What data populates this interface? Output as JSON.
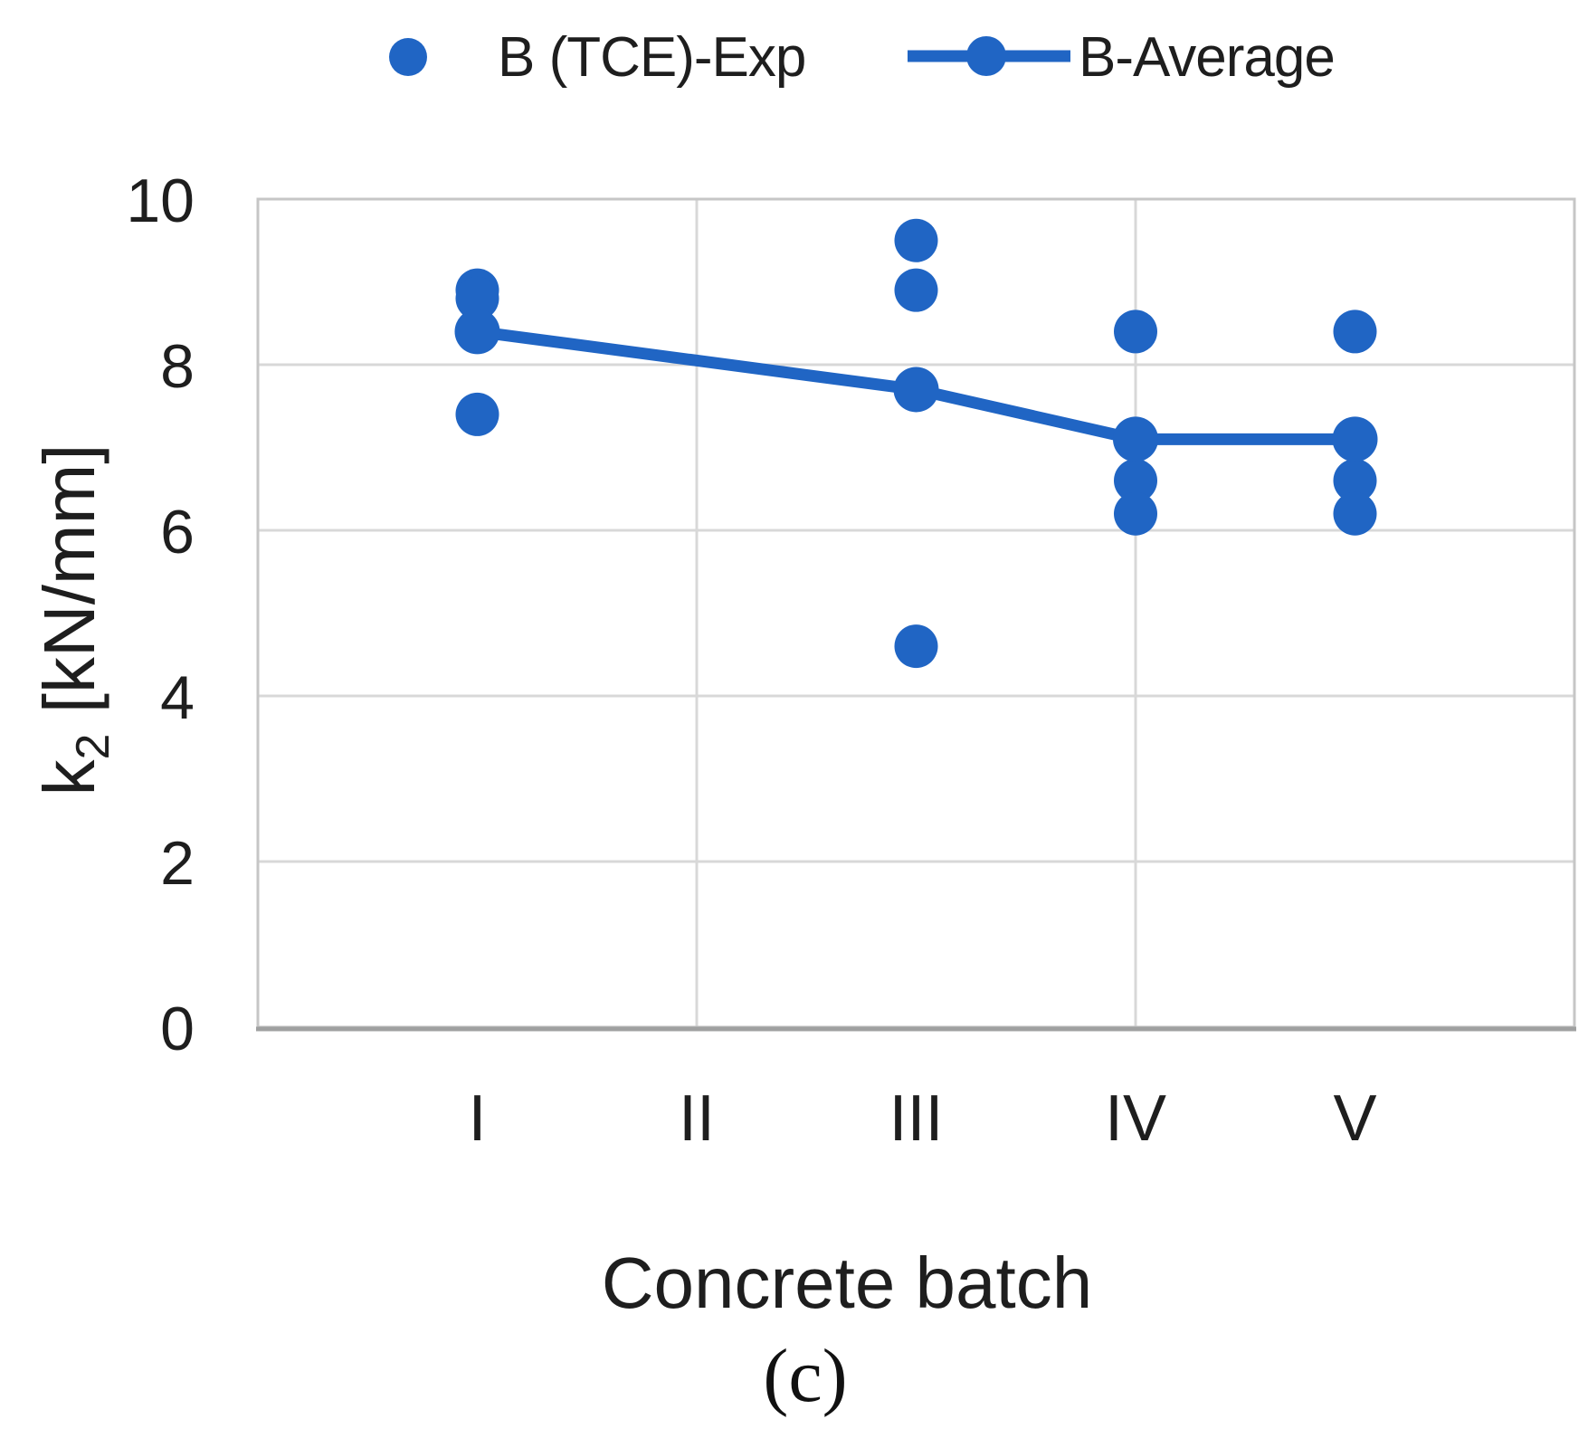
{
  "figure": {
    "caption": "(c)"
  },
  "legend": {
    "items": [
      {
        "label": "B (TCE)-Exp",
        "marker": "dot"
      },
      {
        "label": "B-Average",
        "marker": "line-dot"
      }
    ]
  },
  "chart_data": {
    "type": "scatter",
    "title": "",
    "xlabel": "Concrete batch",
    "ylabel": "k2 [kN/mm]",
    "ylabel_parts": {
      "base": "k",
      "sub": "2",
      "unit": " [kN/mm]"
    },
    "categories": [
      "I",
      "II",
      "III",
      "IV",
      "V"
    ],
    "ylim": [
      0,
      10
    ],
    "yticks": [
      0,
      2,
      4,
      6,
      8,
      10
    ],
    "grid": true,
    "legend_position": "top",
    "series": [
      {
        "name": "B (TCE)-Exp",
        "type": "scatter",
        "points": [
          {
            "batch": "I",
            "value": 8.9
          },
          {
            "batch": "I",
            "value": 8.8
          },
          {
            "batch": "I",
            "value": 7.4
          },
          {
            "batch": "III",
            "value": 9.5
          },
          {
            "batch": "III",
            "value": 8.9
          },
          {
            "batch": "III",
            "value": 4.6
          },
          {
            "batch": "IV",
            "value": 8.4
          },
          {
            "batch": "IV",
            "value": 6.6
          },
          {
            "batch": "IV",
            "value": 6.2
          },
          {
            "batch": "V",
            "value": 8.4
          },
          {
            "batch": "V",
            "value": 6.6
          },
          {
            "batch": "V",
            "value": 6.2
          }
        ]
      },
      {
        "name": "B-Average",
        "type": "line",
        "points": [
          {
            "batch": "I",
            "value": 8.4
          },
          {
            "batch": "III",
            "value": 7.7
          },
          {
            "batch": "IV",
            "value": 7.1
          },
          {
            "batch": "V",
            "value": 7.1
          }
        ]
      }
    ],
    "colors": {
      "accent": "#2065C4",
      "gridline": "#D8D8D8",
      "border": "#C6C6C6",
      "axis": "#9FA0A0",
      "text": "#1E1E1E"
    }
  }
}
